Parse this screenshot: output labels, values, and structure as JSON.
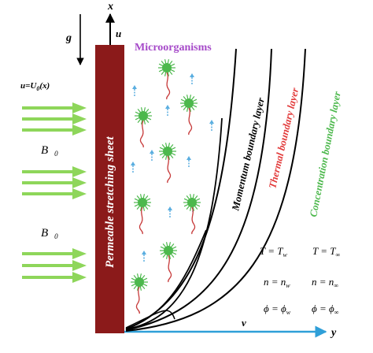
{
  "axes": {
    "x_label": "x",
    "y_label": "y",
    "u_label": "u",
    "v_label": "v",
    "g_label": "g"
  },
  "sheet_label": "Permeable stretching sheet",
  "microorganisms_label": "Microorganisms",
  "free_stream_label": "u=U",
  "free_stream_subscript": "0",
  "free_stream_arg": "(x)",
  "field_labels": [
    {
      "main": "B",
      "sub": "0"
    },
    {
      "main": "B",
      "sub": "0"
    }
  ],
  "boundary_layers": [
    {
      "label": "Momentum boundary layer",
      "color": "#000000"
    },
    {
      "label": "Thermal boundary layer",
      "color": "#e23a3a"
    },
    {
      "label": "Concentration boundary layer",
      "color": "#4cb84c"
    }
  ],
  "conditions": {
    "wall": {
      "T": "T = T",
      "T_sub": "w",
      "n": "n = n",
      "n_sub": "w",
      "phi": "ϕ = ϕ",
      "phi_sub": "w"
    },
    "inf": {
      "T": "T = T",
      "T_sub": "∞",
      "n": "n = n",
      "n_sub": "∞",
      "phi": "ϕ = ϕ",
      "phi_sub": "∞"
    }
  },
  "colors": {
    "sheet": "#8b1a1a",
    "flow_arrows": "#8ed65a",
    "micro_body": "#4cb84c",
    "micro_tail": "#c73a3a",
    "small_arrows": "#5aaee0",
    "title_purple": "#a64ac9",
    "axis_line": "#2f9fd8"
  }
}
